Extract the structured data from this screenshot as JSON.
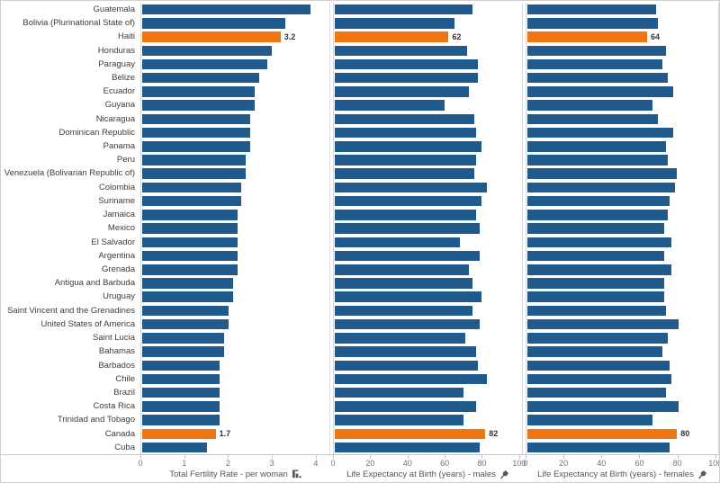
{
  "chart_data": {
    "type": "bar",
    "orientation": "horizontal",
    "grid": false,
    "legend": "none",
    "categories": [
      "Guatemala",
      "Bolivia (Plurinational State of)",
      "Haiti",
      "Honduras",
      "Paraguay",
      "Belize",
      "Ecuador",
      "Guyana",
      "Nicaragua",
      "Dominican Republic",
      "Panama",
      "Peru",
      "Venezuela (Bolivarian Republic of)",
      "Colombia",
      "Suriname",
      "Jamaica",
      "Mexico",
      "El Salvador",
      "Argentina",
      "Grenada",
      "Antigua and Barbuda",
      "Uruguay",
      "Saint Vincent and the Grenadines",
      "United States of America",
      "Saint Lucia",
      "Bahamas",
      "Barbados",
      "Chile",
      "Brazil",
      "Costa Rica",
      "Trinidad and Tobago",
      "Canada",
      "Cuba"
    ],
    "series": [
      {
        "name": "Total Fertility Rate - per woman",
        "values": [
          3.9,
          3.3,
          3.2,
          3.0,
          2.9,
          2.7,
          2.6,
          2.6,
          2.5,
          2.5,
          2.5,
          2.4,
          2.4,
          2.3,
          2.3,
          2.2,
          2.2,
          2.2,
          2.2,
          2.2,
          2.1,
          2.1,
          2.0,
          2.0,
          1.9,
          1.9,
          1.8,
          1.8,
          1.8,
          1.8,
          1.8,
          1.7,
          1.5
        ]
      },
      {
        "name": "Life Expectancy at Birth (years) - males",
        "values": [
          75,
          65,
          62,
          72,
          78,
          78,
          73,
          60,
          76,
          77,
          80,
          77,
          76,
          83,
          80,
          77,
          79,
          68,
          79,
          73,
          75,
          80,
          75,
          79,
          71,
          77,
          78,
          83,
          70,
          77,
          70,
          82,
          79
        ]
      },
      {
        "name": "Life Expectancy at Birth (years) - females",
        "values": [
          69,
          70,
          64,
          74,
          72,
          75,
          78,
          67,
          70,
          78,
          74,
          75,
          80,
          79,
          76,
          75,
          73,
          77,
          73,
          77,
          73,
          73,
          74,
          81,
          75,
          72,
          76,
          77,
          74,
          81,
          67,
          80,
          76
        ]
      }
    ],
    "highlighted_categories": [
      "Haiti",
      "Canada"
    ],
    "data_labels": {
      "Haiti": [
        "3.2",
        "62",
        "64"
      ],
      "Canada": [
        "1.7",
        "82",
        "80"
      ]
    },
    "axes": [
      {
        "ticks": [
          0,
          1,
          2,
          3,
          4
        ],
        "max": 4.33
      },
      {
        "ticks": [
          0,
          20,
          40,
          60,
          80,
          100
        ],
        "max": 102
      },
      {
        "ticks": [
          0,
          20,
          40,
          60,
          80,
          100
        ],
        "max": 102
      }
    ],
    "sort": "descending by Total Fertility Rate"
  },
  "panels": [
    {
      "title": "Total Fertility Rate - per woman",
      "icon": "sort-descending-icon"
    },
    {
      "title": "Life Expectancy at Birth (years) - males",
      "icon": "pin-icon"
    },
    {
      "title": "Life Expectancy at Birth (years) - females",
      "icon": "pin-icon"
    }
  ],
  "colors": {
    "bar": "#205a8c",
    "bar_highlight": "#ef7611",
    "row_label_text": "#3c3c3c",
    "tick_text": "#737373",
    "axis_title_text": "#555555",
    "border": "#cfcfcf",
    "axis_line": "#c9c9c9"
  }
}
